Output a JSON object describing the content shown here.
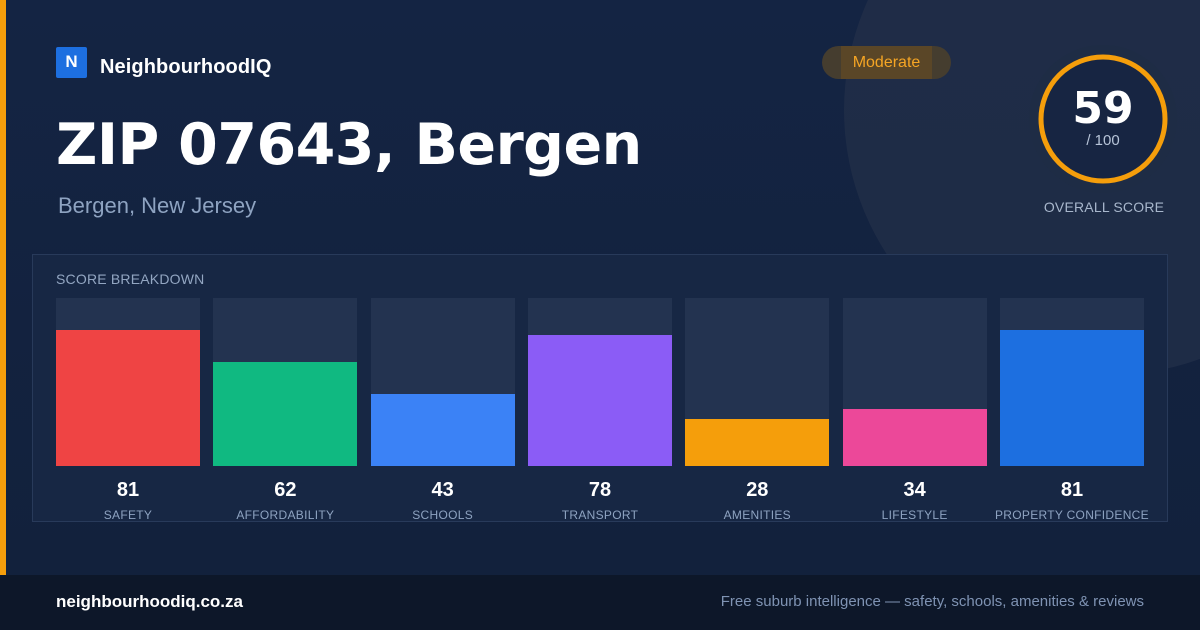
{
  "brand": {
    "logo_letter": "N",
    "name": "NeighbourhoodIQ",
    "color": "#1d6fe0"
  },
  "header": {
    "title": "ZIP 07643, Bergen",
    "subtitle": "Bergen, New Jersey",
    "badge": "Moderate",
    "badge_color": "#f5a524"
  },
  "overall": {
    "score": "59",
    "max": "/ 100",
    "score_fraction": 0.59,
    "label": "OVERALL SCORE",
    "ring_color": "#f59e0b"
  },
  "breakdown": {
    "heading": "SCORE BREAKDOWN",
    "items": [
      {
        "value": 81,
        "label": "SAFETY",
        "color": "#ef4444"
      },
      {
        "value": 62,
        "label": "AFFORDABILITY",
        "color": "#10b981"
      },
      {
        "value": 43,
        "label": "SCHOOLS",
        "color": "#3b82f6"
      },
      {
        "value": 78,
        "label": "TRANSPORT",
        "color": "#8b5cf6"
      },
      {
        "value": 28,
        "label": "AMENITIES",
        "color": "#f59e0b"
      },
      {
        "value": 34,
        "label": "LIFESTYLE",
        "color": "#ec4899"
      },
      {
        "value": 81,
        "label": "PROPERTY CONFIDENCE",
        "color": "#1d6fe0"
      }
    ]
  },
  "footer": {
    "url": "neighbourhoodiq.co.za",
    "tagline": "Free suburb intelligence — safety, schools, amenities & reviews"
  },
  "colors": {
    "accent": "#f59e0b",
    "background": "#132341",
    "footer_background": "#0d1729"
  }
}
